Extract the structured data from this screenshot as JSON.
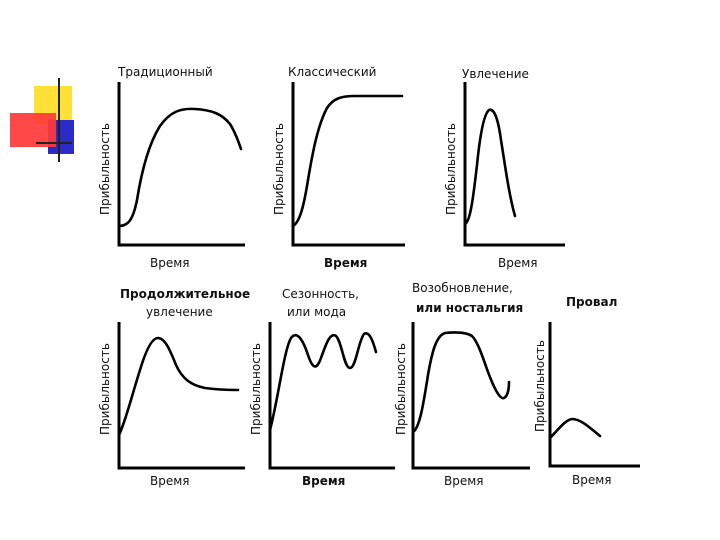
{
  "colors": {
    "accent_yellow": "#ffe135",
    "accent_blue": "#2b2bc8",
    "accent_red": "#ff3a3a"
  },
  "common": {
    "ylabel": "Прибыльность",
    "xlabel": "Время"
  },
  "panels": [
    {
      "title": [
        "Традиционный"
      ],
      "xlabel": "Время",
      "ylabel": "Прибыльность"
    },
    {
      "title": [
        "Классический"
      ],
      "xlabel": "Время",
      "ylabel": "Прибыльность"
    },
    {
      "title": [
        "Увлечение"
      ],
      "xlabel": "Время",
      "ylabel": "Прибыльность"
    },
    {
      "title": [
        "Продолжительное",
        "увлечение"
      ],
      "xlabel": "Время",
      "ylabel": "Прибыльность"
    },
    {
      "title": [
        "Сезонность,",
        "или мода"
      ],
      "xlabel": "Время",
      "ylabel": "Прибыльность"
    },
    {
      "title": [
        "Возобновление,",
        "или ностальгия"
      ],
      "xlabel": "Время",
      "ylabel": "Прибыльность"
    },
    {
      "title": [
        "Провал"
      ],
      "xlabel": "Время",
      "ylabel": "Прибыльность"
    }
  ]
}
